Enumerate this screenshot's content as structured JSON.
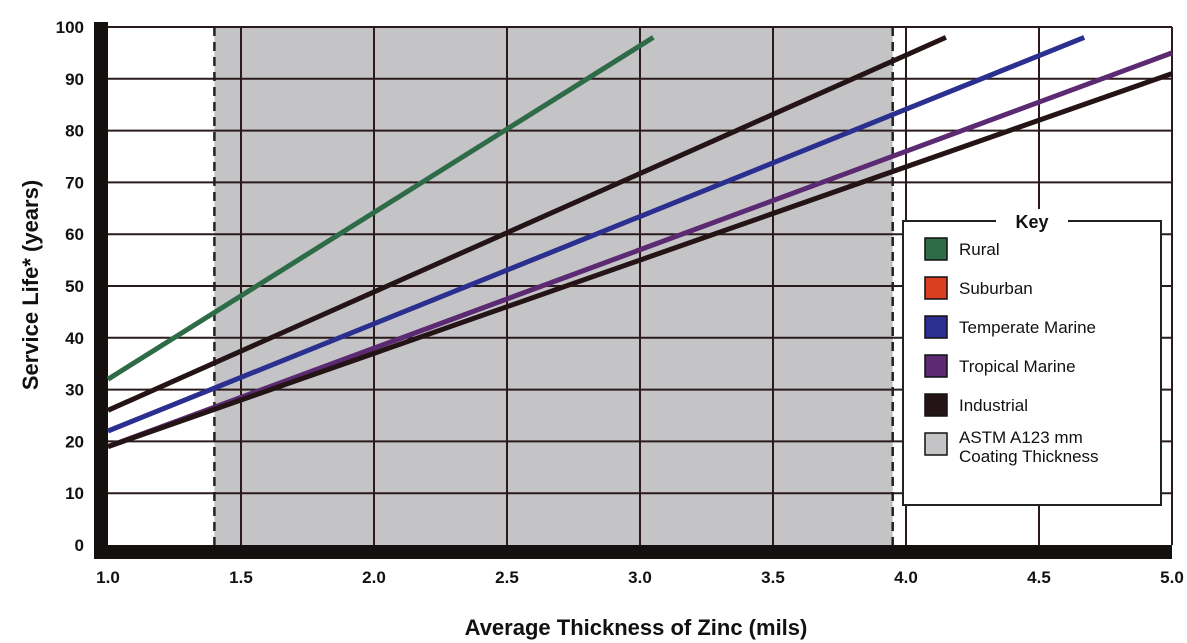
{
  "chart_data": {
    "type": "line",
    "xlabel": "Average Thickness of Zinc (mils)",
    "ylabel": "Service Life* (years)",
    "xlim": [
      1.0,
      5.0
    ],
    "ylim": [
      0,
      100
    ],
    "x_ticks": [
      "1.0",
      "1.5",
      "2.0",
      "2.5",
      "3.0",
      "3.5",
      "4.0",
      "4.5",
      "5.0"
    ],
    "y_ticks": [
      "0",
      "10",
      "20",
      "30",
      "40",
      "50",
      "60",
      "70",
      "80",
      "90",
      "100"
    ],
    "grid": true,
    "legend_title": "Key",
    "legend_position": "right",
    "shaded_region": {
      "label": "ASTM A123 mm Coating Thickness",
      "x_range": [
        1.4,
        3.95
      ],
      "color": "#c4c4c6"
    },
    "series": [
      {
        "name": "Rural",
        "color": "#2e6b47",
        "points": [
          [
            1.0,
            32
          ],
          [
            3.05,
            98
          ]
        ]
      },
      {
        "name": "Suburban",
        "color": "#d8401f",
        "points": []
      },
      {
        "name": "Temperate Marine",
        "color": "#2b2f8f",
        "points": [
          [
            1.0,
            22
          ],
          [
            4.67,
            98
          ]
        ]
      },
      {
        "name": "Tropical Marine",
        "color": "#5c2a73",
        "points": [
          [
            1.0,
            19
          ],
          [
            5.0,
            95
          ]
        ]
      },
      {
        "name": "Industrial",
        "color": "#241416",
        "points": [
          [
            1.0,
            26
          ],
          [
            4.15,
            98
          ]
        ]
      },
      {
        "name": "Industrial",
        "color": "#241416",
        "points": [
          [
            1.0,
            19
          ],
          [
            5.0,
            91
          ]
        ]
      }
    ],
    "legend": [
      {
        "label": "Rural",
        "color": "#2e6b47"
      },
      {
        "label": "Suburban",
        "color": "#d8401f"
      },
      {
        "label": "Temperate Marine",
        "color": "#2b2f8f"
      },
      {
        "label": "Tropical Marine",
        "color": "#5c2a73"
      },
      {
        "label": "Industrial",
        "color": "#241416"
      },
      {
        "label": "ASTM A123 mm",
        "label2": "Coating Thickness",
        "color": "#c4c4c6"
      }
    ]
  }
}
